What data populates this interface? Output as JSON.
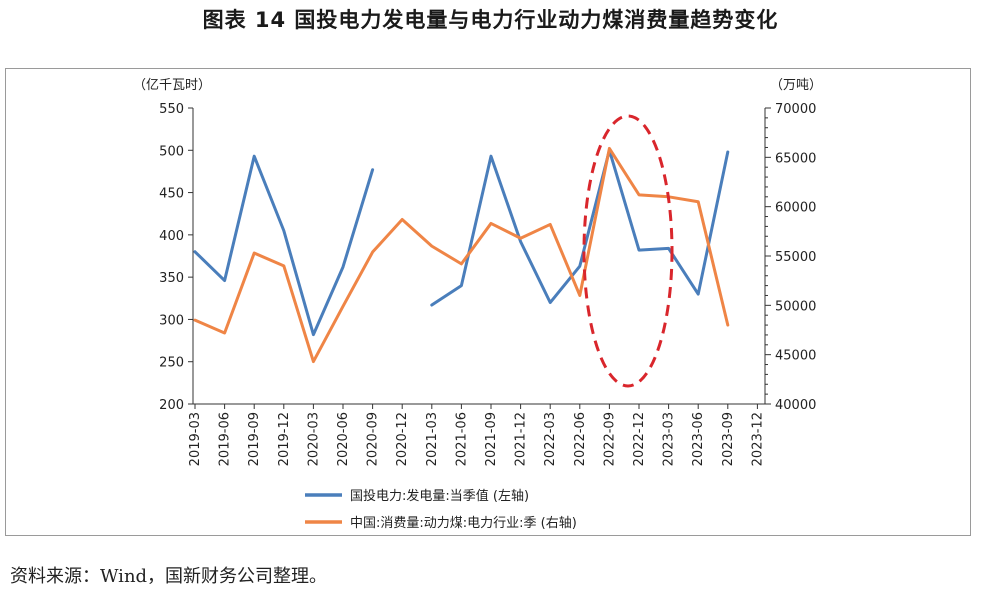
{
  "title": "图表 14  国投电力发电量与电力行业动力煤消费量趋势变化",
  "source": "资料来源：Wind，国新财务公司整理。",
  "chart_data": {
    "type": "line",
    "left_unit": "（亿千瓦时）",
    "right_unit": "（万吨）",
    "left_ylim": [
      200,
      550
    ],
    "left_ticks": [
      200,
      250,
      300,
      350,
      400,
      450,
      500,
      550
    ],
    "right_ylim": [
      40000,
      70000
    ],
    "right_ticks": [
      40000,
      45000,
      50000,
      55000,
      60000,
      65000,
      70000
    ],
    "categories": [
      "2019-03",
      "2019-06",
      "2019-09",
      "2019-12",
      "2020-03",
      "2020-06",
      "2020-09",
      "2020-12",
      "2021-03",
      "2021-06",
      "2021-09",
      "2021-12",
      "2022-03",
      "2022-06",
      "2022-09",
      "2022-12",
      "2023-03",
      "2023-06",
      "2023-09",
      "2023-12"
    ],
    "series": [
      {
        "name": "国投电力:发电量:当季值 (左轴)",
        "axis": "left",
        "color": "#4a7ebb",
        "values": [
          380,
          346,
          493,
          405,
          282,
          362,
          477,
          null,
          317,
          340,
          493,
          392,
          320,
          363,
          500,
          382,
          384,
          330,
          498,
          null
        ]
      },
      {
        "name": "中国:消费量:动力煤:电力行业:季 (右轴)",
        "axis": "right",
        "color": "#ef8546",
        "values": [
          48500,
          47200,
          55300,
          54000,
          44300,
          49900,
          55400,
          58700,
          56000,
          54200,
          58300,
          56800,
          58200,
          51000,
          65900,
          61200,
          61000,
          60500,
          48000,
          null
        ]
      }
    ],
    "annotation": "red dashed ellipse around 2022-09 to 2023-03"
  }
}
